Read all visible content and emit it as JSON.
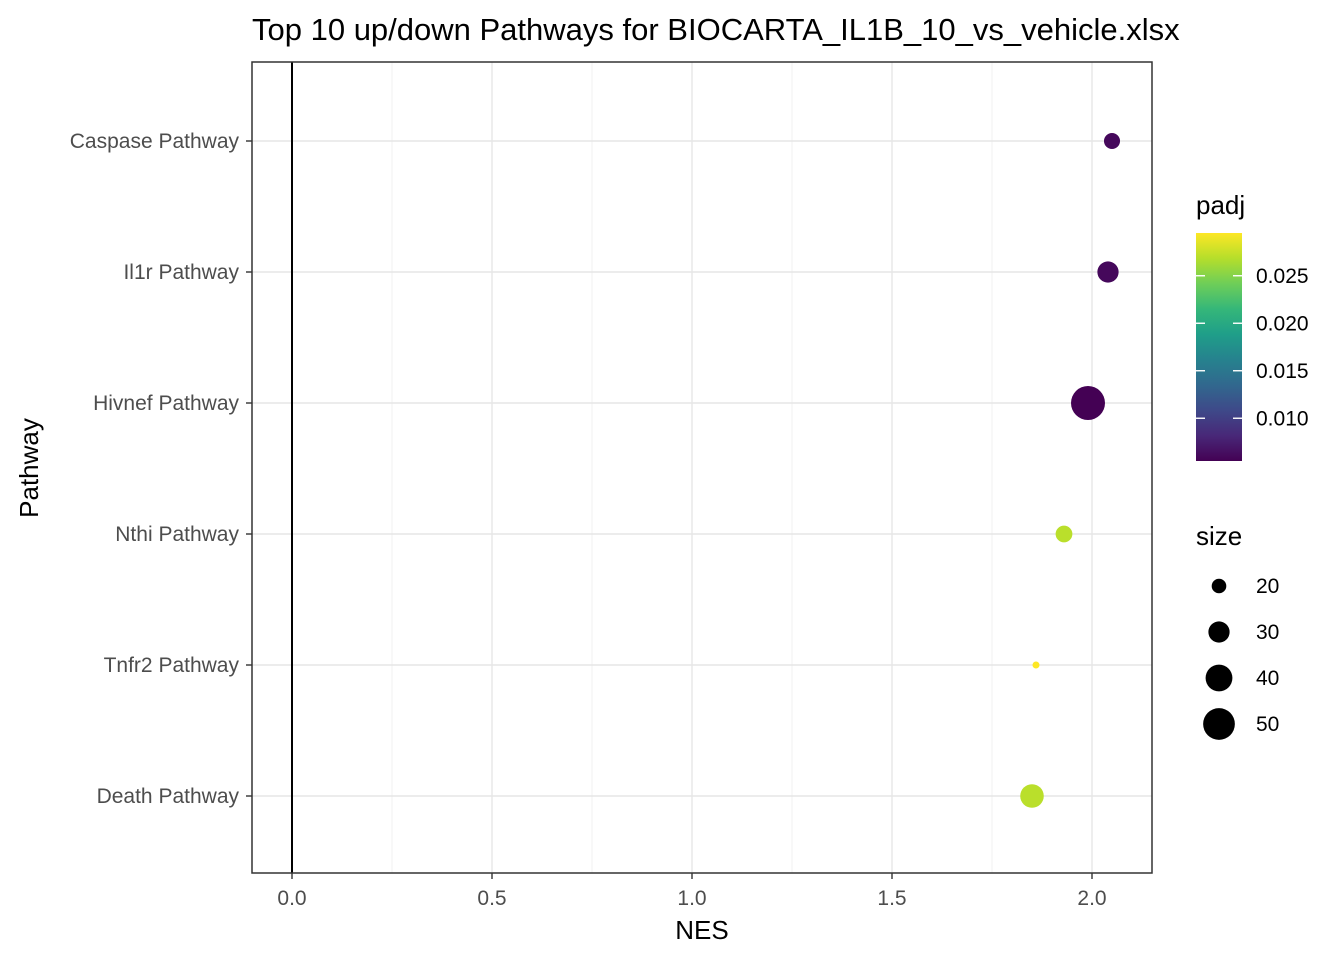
{
  "chart_data": {
    "type": "scatter",
    "title": "Top 10 up/down Pathways for  BIOCARTA_IL1B_10_vs_vehicle.xlsx",
    "xlabel": "NES",
    "ylabel": "Pathway",
    "xlim": [
      -0.1,
      2.15
    ],
    "x_ticks": [
      0.0,
      0.5,
      1.0,
      1.5,
      2.0
    ],
    "x_tick_labels": [
      "0.0",
      "0.5",
      "1.0",
      "1.5",
      "2.0"
    ],
    "reference_line_x": 0,
    "grid": true,
    "categories": [
      "Caspase Pathway",
      "Il1r Pathway",
      "Hivnef Pathway",
      "Nthi Pathway",
      "Tnfr2 Pathway",
      "Death Pathway"
    ],
    "points": [
      {
        "pathway": "Caspase Pathway",
        "NES": 2.05,
        "padj": 0.006,
        "size": 22
      },
      {
        "pathway": "Il1r Pathway",
        "NES": 2.04,
        "padj": 0.006,
        "size": 30
      },
      {
        "pathway": "Hivnef Pathway",
        "NES": 1.99,
        "padj": 0.0055,
        "size": 55
      },
      {
        "pathway": "Nthi Pathway",
        "NES": 1.93,
        "padj": 0.027,
        "size": 23
      },
      {
        "pathway": "Tnfr2 Pathway",
        "NES": 1.86,
        "padj": 0.0295,
        "size": 11
      },
      {
        "pathway": "Death Pathway",
        "NES": 1.85,
        "padj": 0.027,
        "size": 34
      }
    ],
    "legend": {
      "placement": "right",
      "color": {
        "title": "padj",
        "range": [
          0.0055,
          0.0295
        ],
        "ticks": [
          0.01,
          0.015,
          0.02,
          0.025
        ],
        "tick_labels": [
          "0.010",
          "0.015",
          "0.020",
          "0.025"
        ],
        "colormap": [
          "#440154",
          "#482878",
          "#3e4989",
          "#31688e",
          "#26828e",
          "#1f9e89",
          "#35b779",
          "#6ece58",
          "#b5de2b",
          "#fde725"
        ]
      },
      "size": {
        "title": "size",
        "values": [
          20,
          30,
          40,
          50
        ],
        "labels": [
          "20",
          "30",
          "40",
          "50"
        ]
      }
    }
  }
}
